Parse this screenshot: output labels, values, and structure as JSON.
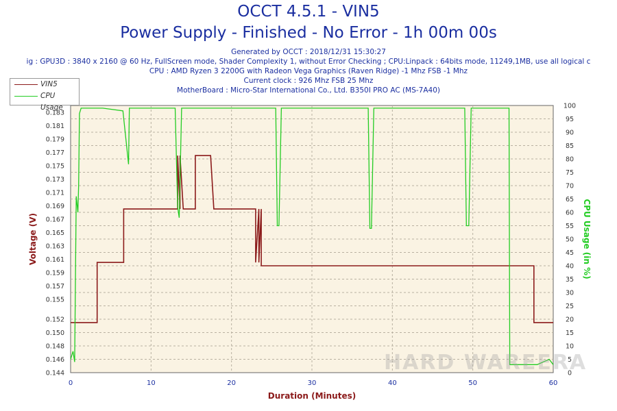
{
  "header": {
    "title": "OCCT 4.5.1 - VIN5",
    "subtitle": "Power Supply - Finished - No Error - 1h 00m 00s",
    "generated": "Generated by OCCT : 2018/12/31 15:30:27",
    "config": "ig : GPU3D : 3840 x 2160 @ 60 Hz, FullScreen mode, Shader Complexity 1, without Error Checking ; CPU:Linpack : 64bits mode, 11249,1MB, use all logical c",
    "cpu": "CPU : AMD Ryzen 3 2200G with Radeon Vega Graphics (Raven Ridge) -1 Mhz FSB -1 Mhz",
    "clock": "Current clock : 926 Mhz FSB 25 Mhz",
    "motherboard": "MotherBoard : Micro-Star International Co., Ltd. B350I PRO AC (MS-7A40)"
  },
  "legend": {
    "s1": "VIN5",
    "s2": "CPU Usage"
  },
  "watermark": "HARD WAREERA",
  "colors": {
    "vin5": "#8b1a1a",
    "cpu": "#22cc22",
    "plot_bg": "#faf3e3",
    "grid": "#b8b0a0",
    "axis_label_left": "#8b1a1a",
    "axis_label_right": "#22cc22",
    "title": "#1a2ea0"
  },
  "chart_data": {
    "type": "line",
    "xlabel": "Duration (Minutes)",
    "ylabel": "Voltage (V)",
    "y2label": "CPU Usage (in %)",
    "xlim": [
      0,
      60
    ],
    "ylim": [
      0.144,
      0.184
    ],
    "y2lim": [
      0,
      100
    ],
    "xticks": [
      0,
      10,
      20,
      30,
      40,
      50,
      60
    ],
    "yticks": [
      0.144,
      0.146,
      0.148,
      0.15,
      0.152,
      0.155,
      0.157,
      0.159,
      0.161,
      0.163,
      0.165,
      0.167,
      0.169,
      0.171,
      0.173,
      0.175,
      0.177,
      0.179,
      0.181,
      0.183
    ],
    "ytick_labels": [
      "0.144",
      "0.146",
      "0.148",
      "0.150",
      "0.152",
      "0.155",
      "0.157",
      "0.159",
      "0.161",
      "0.163",
      "0.165",
      "0.167",
      "0.169",
      "0.171",
      "0.173",
      "0.175",
      "0.177",
      "0.179",
      "0.181",
      "0.183"
    ],
    "y2ticks": [
      0,
      5,
      10,
      15,
      20,
      25,
      30,
      35,
      40,
      45,
      50,
      55,
      60,
      65,
      70,
      75,
      80,
      85,
      90,
      95,
      100
    ],
    "grid": true,
    "legend_position": "top-left",
    "series": [
      {
        "name": "VIN5",
        "axis": "left",
        "x": [
          0,
          3.3,
          3.3,
          6.6,
          6.6,
          13.3,
          13.3,
          13.6,
          13.6,
          14.0,
          14.0,
          15.5,
          15.5,
          15.9,
          15.9,
          17.4,
          17.4,
          17.8,
          17.8,
          23.0,
          23.0,
          23.4,
          23.4,
          23.7,
          23.7,
          57.6,
          57.6,
          60
        ],
        "y": [
          0.1515,
          0.1515,
          0.1605,
          0.1605,
          0.1685,
          0.1685,
          0.1765,
          0.1685,
          0.1765,
          0.1685,
          0.1685,
          0.1685,
          0.1765,
          0.1765,
          0.1765,
          0.1765,
          0.1765,
          0.1685,
          0.1685,
          0.1685,
          0.1605,
          0.1685,
          0.1605,
          0.1685,
          0.16,
          0.16,
          0.1515,
          0.1515
        ]
      },
      {
        "name": "CPU Usage",
        "axis": "right",
        "x": [
          0,
          0.3,
          0.5,
          0.7,
          0.9,
          1.0,
          1.1,
          1.3,
          1.5,
          2.0,
          4.0,
          6.5,
          7.2,
          7.3,
          7.5,
          10.0,
          13.0,
          13.3,
          13.5,
          13.8,
          14.1,
          14.5,
          20.0,
          25.5,
          25.7,
          25.9,
          26.2,
          30.0,
          37.0,
          37.2,
          37.4,
          37.7,
          45.0,
          49.0,
          49.2,
          49.5,
          49.8,
          54.5,
          54.6,
          55.0,
          58.0,
          59.5,
          60.0
        ],
        "y": [
          5,
          8,
          4,
          66,
          60,
          70,
          97,
          99,
          99,
          99,
          99,
          98,
          78,
          99,
          99,
          99,
          99,
          62,
          58,
          99,
          99,
          99,
          99,
          99,
          55,
          55,
          99,
          99,
          99,
          54,
          54,
          99,
          99,
          99,
          55,
          55,
          99,
          99,
          3,
          3,
          3,
          5,
          3
        ]
      }
    ]
  }
}
